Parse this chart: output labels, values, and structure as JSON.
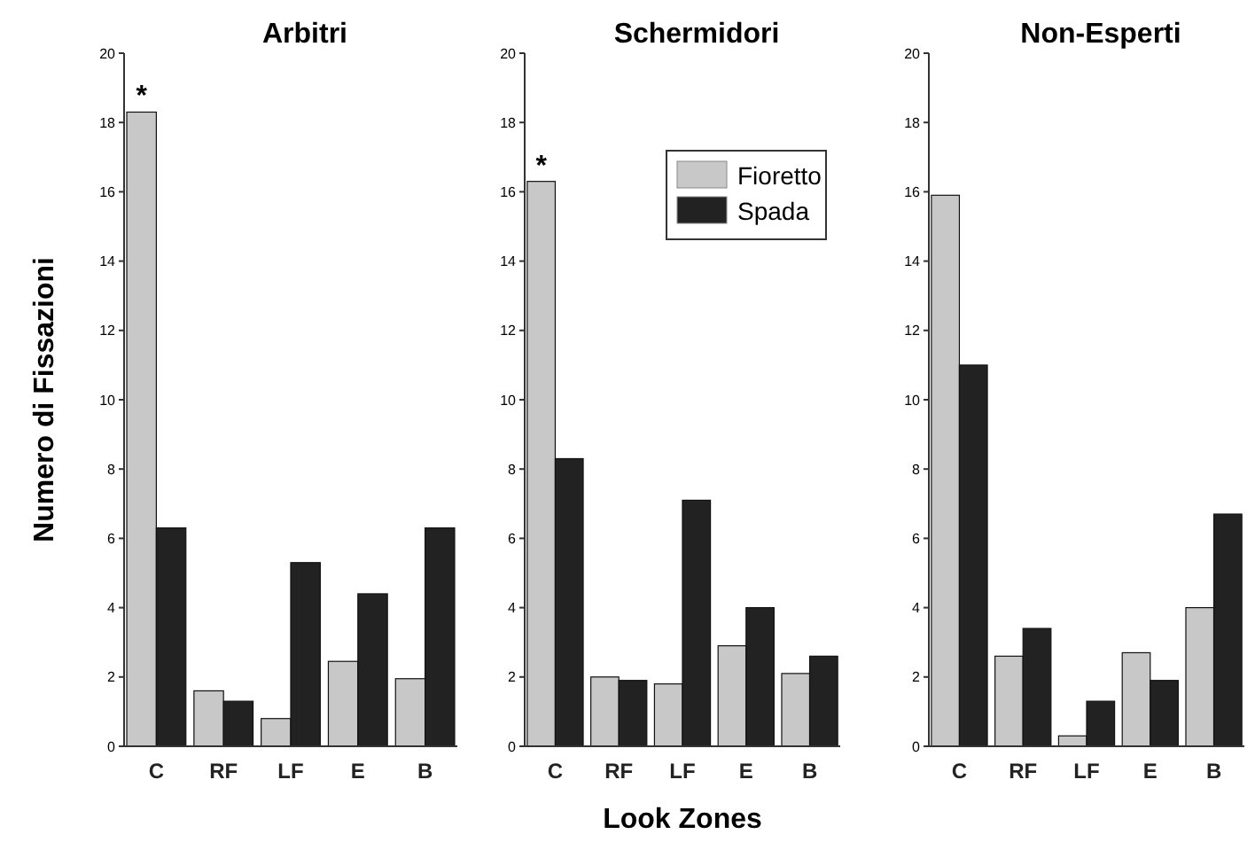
{
  "chart_data": [
    {
      "type": "bar",
      "title": "Arbitri",
      "ylabel": "Numero di Fissazioni",
      "categories": [
        "C",
        "RF",
        "LF",
        "E",
        "B"
      ],
      "series": [
        {
          "color": "#c8c8c8",
          "values": [
            18.3,
            1.6,
            0.8,
            2.45,
            1.95
          ]
        },
        {
          "color": "#222222",
          "values": [
            6.3,
            1.3,
            5.3,
            4.4,
            6.3
          ]
        }
      ],
      "ylim": [
        0,
        20
      ],
      "yticks": [
        0,
        2,
        4,
        6,
        8,
        10,
        12,
        14,
        16,
        18,
        20
      ],
      "grid": false,
      "legend": false,
      "annotations": [
        {
          "text": "*",
          "x": "C",
          "y": 18.3
        }
      ]
    },
    {
      "type": "bar",
      "title": "Schermidori",
      "xlabel": "Look Zones",
      "categories": [
        "C",
        "RF",
        "LF",
        "E",
        "B"
      ],
      "series": [
        {
          "name": "Fioretto",
          "color": "#c8c8c8",
          "values": [
            16.3,
            2.0,
            1.8,
            2.9,
            2.1
          ]
        },
        {
          "name": "Spada",
          "color": "#222222",
          "values": [
            8.3,
            1.9,
            7.1,
            4.0,
            2.6
          ]
        }
      ],
      "ylim": [
        0,
        20
      ],
      "yticks": [
        0,
        2,
        4,
        6,
        8,
        10,
        12,
        14,
        16,
        18,
        20
      ],
      "grid": false,
      "legend": "top right",
      "annotations": [
        {
          "text": "*",
          "x": "C",
          "y": 16.3
        }
      ]
    },
    {
      "type": "bar",
      "title": "Non-Esperti",
      "categories": [
        "C",
        "RF",
        "LF",
        "E",
        "B"
      ],
      "series": [
        {
          "color": "#c8c8c8",
          "values": [
            15.9,
            2.6,
            0.3,
            2.7,
            4.0
          ]
        },
        {
          "color": "#222222",
          "values": [
            11.0,
            3.4,
            1.3,
            1.9,
            6.7
          ]
        }
      ],
      "ylim": [
        0,
        20
      ],
      "yticks": [
        0,
        2,
        4,
        6,
        8,
        10,
        12,
        14,
        16,
        18,
        20
      ],
      "grid": false,
      "legend": false
    }
  ]
}
